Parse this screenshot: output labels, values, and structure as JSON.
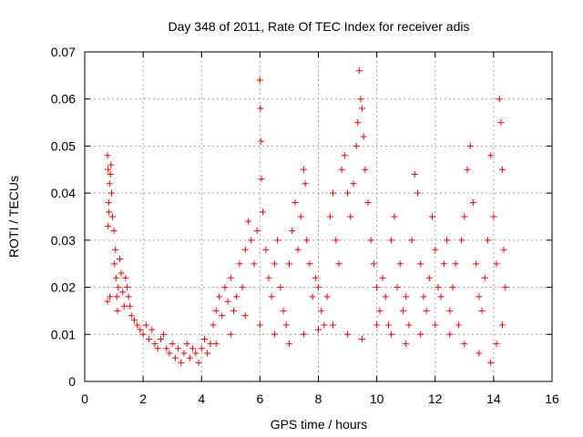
{
  "colors": {
    "series": "#ff0000",
    "axis": "#000000",
    "grid": "#a0a0a0"
  },
  "chart_data": {
    "type": "scatter",
    "title": "Day 348 of 2011, Rate Of TEC Index for receiver adis",
    "xlabel": "GPS time / hours",
    "ylabel": "ROTI / TECUs",
    "xlim": [
      0,
      16
    ],
    "ylim": [
      0,
      0.07
    ],
    "xticks": [
      0,
      2,
      4,
      6,
      8,
      10,
      12,
      14,
      16
    ],
    "yticks": [
      0,
      0.01,
      0.02,
      0.03,
      0.04,
      0.05,
      0.06,
      0.07
    ],
    "xtick_labels": [
      "0",
      "2",
      "4",
      "6",
      "8",
      "10",
      "12",
      "14",
      "16"
    ],
    "ytick_labels": [
      "0",
      "0.01",
      "0.02",
      "0.03",
      "0.04",
      "0.05",
      "0.06",
      "0.07"
    ],
    "grid": true,
    "marker": "+",
    "series": [
      {
        "name": "ROTI",
        "points": [
          [
            0.78,
            0.048
          ],
          [
            0.8,
            0.045
          ],
          [
            0.82,
            0.038
          ],
          [
            0.85,
            0.042
          ],
          [
            0.88,
            0.044
          ],
          [
            0.9,
            0.046
          ],
          [
            0.92,
            0.04
          ],
          [
            0.8,
            0.033
          ],
          [
            0.83,
            0.036
          ],
          [
            0.86,
            0.018
          ],
          [
            0.78,
            0.017
          ],
          [
            0.95,
            0.035
          ],
          [
            1.0,
            0.032
          ],
          [
            1.02,
            0.025
          ],
          [
            1.05,
            0.028
          ],
          [
            1.08,
            0.022
          ],
          [
            1.1,
            0.018
          ],
          [
            1.12,
            0.015
          ],
          [
            1.15,
            0.02
          ],
          [
            1.2,
            0.026
          ],
          [
            1.25,
            0.023
          ],
          [
            1.3,
            0.019
          ],
          [
            1.35,
            0.016
          ],
          [
            1.4,
            0.022
          ],
          [
            1.45,
            0.02
          ],
          [
            1.5,
            0.018
          ],
          [
            1.55,
            0.016
          ],
          [
            1.6,
            0.014
          ],
          [
            1.7,
            0.013
          ],
          [
            1.8,
            0.012
          ],
          [
            1.9,
            0.011
          ],
          [
            2.0,
            0.01
          ],
          [
            2.1,
            0.012
          ],
          [
            2.2,
            0.009
          ],
          [
            2.3,
            0.011
          ],
          [
            2.4,
            0.008
          ],
          [
            2.5,
            0.007
          ],
          [
            2.6,
            0.009
          ],
          [
            2.7,
            0.01
          ],
          [
            2.8,
            0.007
          ],
          [
            2.9,
            0.006
          ],
          [
            3.0,
            0.008
          ],
          [
            3.1,
            0.005
          ],
          [
            3.2,
            0.007
          ],
          [
            3.3,
            0.004
          ],
          [
            3.4,
            0.006
          ],
          [
            3.5,
            0.008
          ],
          [
            3.6,
            0.005
          ],
          [
            3.7,
            0.007
          ],
          [
            3.8,
            0.006
          ],
          [
            3.9,
            0.004
          ],
          [
            4.0,
            0.007
          ],
          [
            4.1,
            0.009
          ],
          [
            4.2,
            0.006
          ],
          [
            4.3,
            0.008
          ],
          [
            4.4,
            0.012
          ],
          [
            4.5,
            0.015
          ],
          [
            4.6,
            0.018
          ],
          [
            4.7,
            0.014
          ],
          [
            4.8,
            0.02
          ],
          [
            4.9,
            0.017
          ],
          [
            5.0,
            0.022
          ],
          [
            5.1,
            0.015
          ],
          [
            5.2,
            0.018
          ],
          [
            5.3,
            0.025
          ],
          [
            5.4,
            0.02
          ],
          [
            5.5,
            0.028
          ],
          [
            5.6,
            0.034
          ],
          [
            5.7,
            0.03
          ],
          [
            5.8,
            0.025
          ],
          [
            5.9,
            0.032
          ],
          [
            6.0,
            0.064
          ],
          [
            6.02,
            0.058
          ],
          [
            6.04,
            0.051
          ],
          [
            6.05,
            0.043
          ],
          [
            6.1,
            0.036
          ],
          [
            6.2,
            0.028
          ],
          [
            6.3,
            0.022
          ],
          [
            6.4,
            0.018
          ],
          [
            6.5,
            0.025
          ],
          [
            6.6,
            0.03
          ],
          [
            6.7,
            0.02
          ],
          [
            6.8,
            0.015
          ],
          [
            6.9,
            0.012
          ],
          [
            7.0,
            0.025
          ],
          [
            7.1,
            0.032
          ],
          [
            7.2,
            0.038
          ],
          [
            7.3,
            0.028
          ],
          [
            7.4,
            0.035
          ],
          [
            7.5,
            0.045
          ],
          [
            7.55,
            0.042
          ],
          [
            7.6,
            0.03
          ],
          [
            7.7,
            0.025
          ],
          [
            7.8,
            0.018
          ],
          [
            7.9,
            0.022
          ],
          [
            8.0,
            0.02
          ],
          [
            8.1,
            0.015
          ],
          [
            8.2,
            0.012
          ],
          [
            8.3,
            0.018
          ],
          [
            8.4,
            0.035
          ],
          [
            8.5,
            0.04
          ],
          [
            8.6,
            0.03
          ],
          [
            8.7,
            0.025
          ],
          [
            8.8,
            0.045
          ],
          [
            8.9,
            0.048
          ],
          [
            9.0,
            0.04
          ],
          [
            9.1,
            0.035
          ],
          [
            9.2,
            0.042
          ],
          [
            9.3,
            0.05
          ],
          [
            9.35,
            0.055
          ],
          [
            9.4,
            0.066
          ],
          [
            9.45,
            0.06
          ],
          [
            9.5,
            0.058
          ],
          [
            9.55,
            0.052
          ],
          [
            9.6,
            0.045
          ],
          [
            9.7,
            0.038
          ],
          [
            9.8,
            0.03
          ],
          [
            9.9,
            0.025
          ],
          [
            10.0,
            0.02
          ],
          [
            10.1,
            0.015
          ],
          [
            10.2,
            0.022
          ],
          [
            10.3,
            0.018
          ],
          [
            10.4,
            0.012
          ],
          [
            10.5,
            0.03
          ],
          [
            10.6,
            0.035
          ],
          [
            10.7,
            0.02
          ],
          [
            10.8,
            0.025
          ],
          [
            10.9,
            0.015
          ],
          [
            11.0,
            0.018
          ],
          [
            11.1,
            0.012
          ],
          [
            11.2,
            0.03
          ],
          [
            11.3,
            0.044
          ],
          [
            11.4,
            0.04
          ],
          [
            11.5,
            0.025
          ],
          [
            11.6,
            0.018
          ],
          [
            11.7,
            0.015
          ],
          [
            11.8,
            0.022
          ],
          [
            11.9,
            0.035
          ],
          [
            12.0,
            0.028
          ],
          [
            12.1,
            0.02
          ],
          [
            12.2,
            0.018
          ],
          [
            12.3,
            0.025
          ],
          [
            12.4,
            0.03
          ],
          [
            12.5,
            0.015
          ],
          [
            12.6,
            0.02
          ],
          [
            12.7,
            0.025
          ],
          [
            12.8,
            0.012
          ],
          [
            12.9,
            0.03
          ],
          [
            13.0,
            0.035
          ],
          [
            13.1,
            0.045
          ],
          [
            13.2,
            0.05
          ],
          [
            13.3,
            0.038
          ],
          [
            13.4,
            0.025
          ],
          [
            13.5,
            0.018
          ],
          [
            13.6,
            0.015
          ],
          [
            13.7,
            0.022
          ],
          [
            13.8,
            0.03
          ],
          [
            13.9,
            0.048
          ],
          [
            14.0,
            0.035
          ],
          [
            14.1,
            0.025
          ],
          [
            14.2,
            0.06
          ],
          [
            14.25,
            0.055
          ],
          [
            14.3,
            0.045
          ],
          [
            14.35,
            0.028
          ],
          [
            14.4,
            0.02
          ],
          [
            14.3,
            0.012
          ],
          [
            14.1,
            0.008
          ],
          [
            13.9,
            0.004
          ],
          [
            13.5,
            0.006
          ],
          [
            13.0,
            0.008
          ],
          [
            12.5,
            0.01
          ],
          [
            12.0,
            0.012
          ],
          [
            11.5,
            0.01
          ],
          [
            11.0,
            0.008
          ],
          [
            10.5,
            0.01
          ],
          [
            10.0,
            0.012
          ],
          [
            9.5,
            0.009
          ],
          [
            9.0,
            0.01
          ],
          [
            8.5,
            0.012
          ],
          [
            8.0,
            0.011
          ],
          [
            7.5,
            0.01
          ],
          [
            7.0,
            0.008
          ],
          [
            6.5,
            0.01
          ],
          [
            6.0,
            0.012
          ],
          [
            5.5,
            0.014
          ],
          [
            5.0,
            0.01
          ],
          [
            4.5,
            0.008
          ]
        ]
      }
    ]
  }
}
